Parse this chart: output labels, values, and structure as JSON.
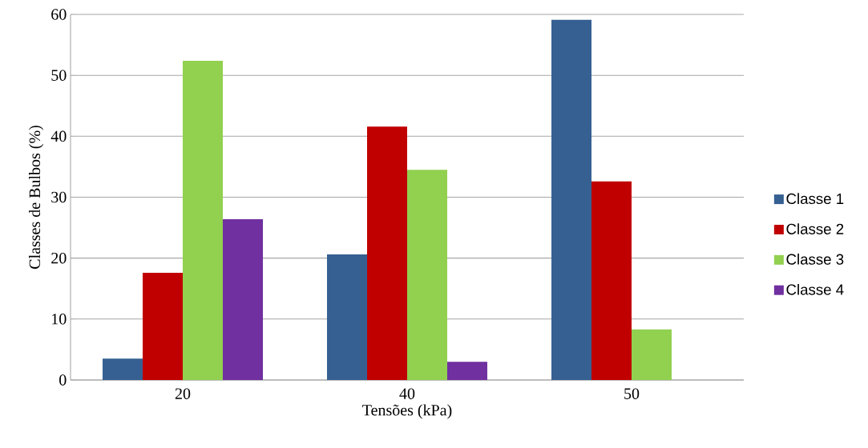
{
  "chart_data": {
    "type": "bar",
    "xlabel": "Tensões (kPa)",
    "ylabel": "Classes de Bulbos (%)",
    "categories": [
      "20",
      "40",
      "50"
    ],
    "series": [
      {
        "name": "Classe 1",
        "color": "#366092",
        "values": [
          3.5,
          20.6,
          59.1
        ]
      },
      {
        "name": "Classe 2",
        "color": "#c00000",
        "values": [
          17.6,
          41.6,
          32.6
        ]
      },
      {
        "name": "Classe 3",
        "color": "#92d050",
        "values": [
          52.4,
          34.5,
          8.3
        ]
      },
      {
        "name": "Classe 4",
        "color": "#7030a0",
        "values": [
          26.4,
          3.0,
          0
        ]
      }
    ],
    "ylim": [
      0,
      60
    ],
    "yticks": [
      0,
      10,
      20,
      30,
      40,
      50,
      60
    ],
    "grid": "y",
    "legend": "right"
  }
}
